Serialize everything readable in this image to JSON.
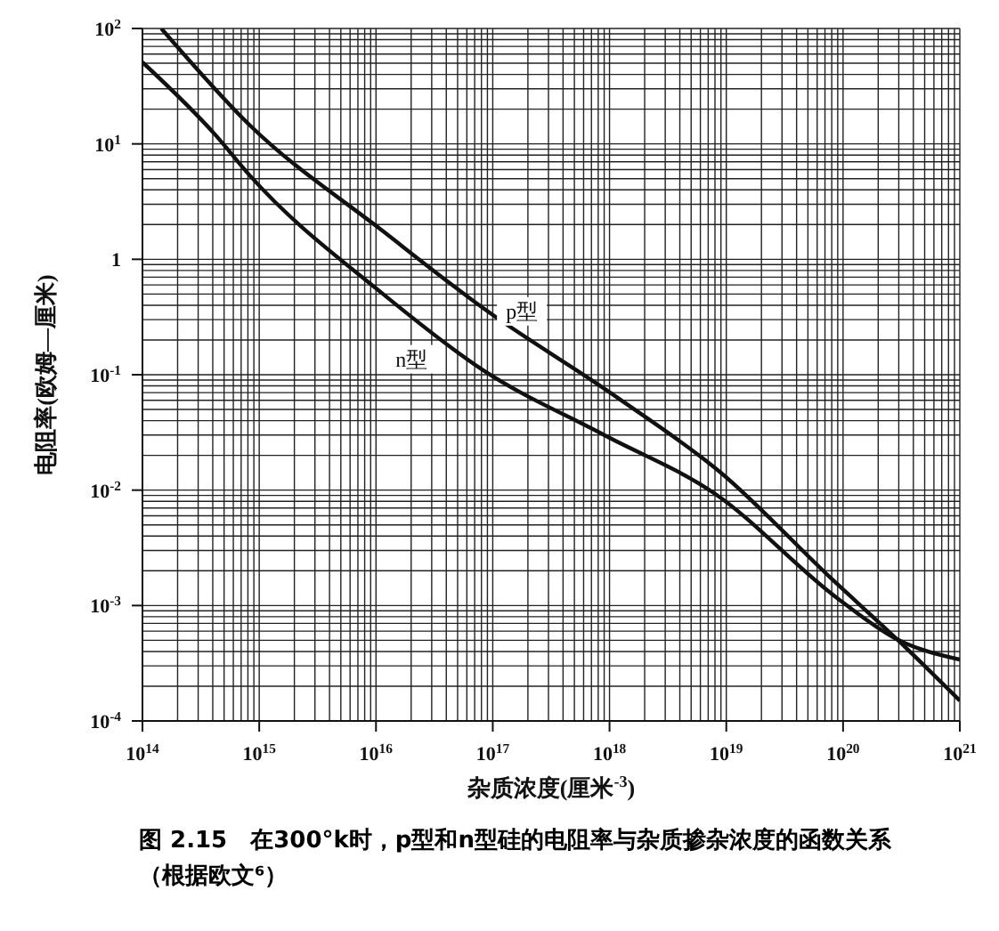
{
  "chart_data": {
    "type": "line",
    "xlabel": "杂质浓度(厘米$^{-3}$)",
    "ylabel": "电阻率(欧姆—厘米)",
    "annotations": [
      "图 2.15　在300°k时，p型和n型硅的电阻率与杂质掺杂浓度的函数关系（根据欧文⁶）"
    ],
    "log": "xy",
    "grid": true,
    "marker": "none",
    "line_style": "solid",
    "xlim": [
      100000000000000.0,
      1e+21
    ],
    "ylim": [
      0.0001,
      100
    ],
    "xticks": [
      {
        "value": 100000000000000.0,
        "label": "10$^{14}$"
      },
      {
        "value": 1000000000000000.0,
        "label": "10$^{15}$"
      },
      {
        "value": 1e+16,
        "label": "10$^{16}$"
      },
      {
        "value": 1e+17,
        "label": "10$^{17}$"
      },
      {
        "value": 1e+18,
        "label": "10$^{18}$"
      },
      {
        "value": 1e+19,
        "label": "10$^{19}$"
      },
      {
        "value": 1e+20,
        "label": "10$^{20}$"
      },
      {
        "value": 1e+21,
        "label": "10$^{21}$"
      }
    ],
    "yticks": [
      {
        "value": 0.0001,
        "label": "10$^{-4}$"
      },
      {
        "value": 0.001,
        "label": "10$^{-3}$"
      },
      {
        "value": 0.01,
        "label": "10$^{-2}$"
      },
      {
        "value": 0.1,
        "label": "10$^{-1}$"
      },
      1,
      {
        "value": 10,
        "label": "10$^{1}$"
      },
      {
        "value": 100,
        "label": "10$^{2}$"
      }
    ],
    "series": [
      {
        "name": "p型",
        "color": "#111111",
        "x": [
          145000000000000.0,
          820000000000000.0,
          1.15e+16,
          8.2e+16,
          1.15e+18,
          9.1e+18,
          8e+19,
          2.9e+20,
          1e+21
        ],
        "values": [
          100,
          14.7,
          1.75,
          0.38,
          0.064,
          0.014,
          0.0017,
          0.00051,
          0.00015
        ]
      },
      {
        "name": "n型",
        "color": "#111111",
        "x": [
          100000000000000.0,
          420000000000000.0,
          820000000000000.0,
          1.15e+16,
          8.2e+16,
          9e+17,
          8e+18,
          9e+19,
          2.9e+20,
          1e+21
        ],
        "values": [
          51,
          12,
          5.4,
          0.5,
          0.11,
          0.03,
          0.0093,
          0.00115,
          0.00051,
          0.00034
        ]
      }
    ]
  }
}
